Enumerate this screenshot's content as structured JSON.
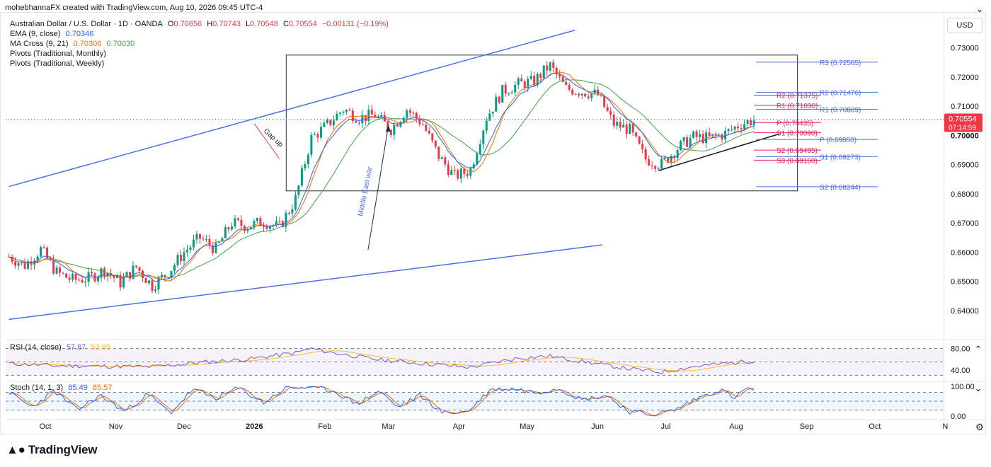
{
  "header": {
    "attribution": "mohebhannaFX created with TradingView.com, Aug 10, 2026 09:45 UTC-4"
  },
  "symbol": {
    "name": "Australian Dollar / U.S. Dollar · 1D · OANDA",
    "o_label": "O",
    "o": "0.70656",
    "h_label": "H",
    "h": "0.70743",
    "l_label": "L",
    "l": "0.70548",
    "c_label": "C",
    "c": "0.70554",
    "change": "−0.00131 (−0.19%)"
  },
  "indicators": {
    "ema_label": "EMA (9, close)",
    "ema_value": "0.70346",
    "ma_label": "MA Cross (9, 21)",
    "ma_fast": "0.70306",
    "ma_slow": "0.70030",
    "pivots_monthly": "Pivots (Traditional, Monthly)",
    "pivots_weekly": "Pivots (Traditional, Weekly)"
  },
  "currency_button": "USD",
  "last_price": {
    "value": "0.70554",
    "countdown": "07:14:59"
  },
  "annotations": {
    "gap": "Gap up",
    "war": "Middle East war"
  },
  "rsi": {
    "label": "RSI (14, close)",
    "value": "57.87",
    "ma": "53.89",
    "upper": "80.00",
    "lower": "40.00"
  },
  "stoch": {
    "label": "Stoch (14, 1, 3)",
    "k": "85.49",
    "d": "85.57",
    "upper": "100.00",
    "lower": "0.00"
  },
  "brand": "TradingView",
  "colors": {
    "up": "#089981",
    "down": "#f23645",
    "ema": "#2962ff",
    "ma_fast": "#ff6d00",
    "ma_slow": "#43a047",
    "channel": "#4c6fe3",
    "pivot_monthly": "#4c6fe3",
    "pivot_weekly": "#e91e63",
    "rsi": "#7e57c2",
    "rsi_ma": "#fbc02d"
  },
  "chart_data": {
    "type": "candlestick",
    "title": "Australian Dollar / U.S. Dollar · 1D · OANDA",
    "y_ticks": [
      "0.73000",
      "0.72000",
      "0.71000",
      "0.70000",
      "0.69000",
      "0.68000",
      "0.67000",
      "0.66000",
      "0.65000",
      "0.64000"
    ],
    "ylim": [
      0.6355,
      0.7335
    ],
    "x_ticks": [
      {
        "label": "Oct",
        "date": "2025-10-01"
      },
      {
        "label": "Nov",
        "date": "2025-11-01"
      },
      {
        "label": "Dec",
        "date": "2025-12-01"
      },
      {
        "label": "2026",
        "date": "2026-01-01",
        "bold": true
      },
      {
        "label": "Feb",
        "date": "2026-02-01"
      },
      {
        "label": "Mar",
        "date": "2026-03-01"
      },
      {
        "label": "Apr",
        "date": "2026-04-01"
      },
      {
        "label": "May",
        "date": "2026-05-01"
      },
      {
        "label": "Jun",
        "date": "2026-06-01"
      },
      {
        "label": "Jul",
        "date": "2026-07-01"
      },
      {
        "label": "Aug",
        "date": "2026-08-01"
      },
      {
        "label": "Sep",
        "date": "2026-09-01"
      },
      {
        "label": "Oct",
        "date": "2026-10-01"
      },
      {
        "label": "N",
        "date": "2026-11-01"
      }
    ],
    "close_path": [
      [
        "2025-09-15",
        0.6585
      ],
      [
        "2025-09-22",
        0.6555
      ],
      [
        "2025-09-29",
        0.661
      ],
      [
        "2025-10-06",
        0.653
      ],
      [
        "2025-10-13",
        0.6505
      ],
      [
        "2025-10-20",
        0.651
      ],
      [
        "2025-10-27",
        0.654
      ],
      [
        "2025-11-03",
        0.6495
      ],
      [
        "2025-11-10",
        0.655
      ],
      [
        "2025-11-17",
        0.6485
      ],
      [
        "2025-11-24",
        0.653
      ],
      [
        "2025-12-01",
        0.66
      ],
      [
        "2025-12-08",
        0.665
      ],
      [
        "2025-12-15",
        0.661
      ],
      [
        "2025-12-22",
        0.67
      ],
      [
        "2025-12-29",
        0.669
      ],
      [
        "2026-01-05",
        0.6705
      ],
      [
        "2026-01-12",
        0.6685
      ],
      [
        "2026-01-19",
        0.678
      ],
      [
        "2026-01-26",
        0.699
      ],
      [
        "2026-02-02",
        0.7035
      ],
      [
        "2026-02-09",
        0.709
      ],
      [
        "2026-02-16",
        0.706
      ],
      [
        "2026-02-23",
        0.707
      ],
      [
        "2026-03-02",
        0.702
      ],
      [
        "2026-03-09",
        0.709
      ],
      [
        "2026-03-16",
        0.704
      ],
      [
        "2026-03-23",
        0.693
      ],
      [
        "2026-03-30",
        0.686
      ],
      [
        "2026-04-06",
        0.688
      ],
      [
        "2026-04-13",
        0.706
      ],
      [
        "2026-04-20",
        0.715
      ],
      [
        "2026-04-27",
        0.7175
      ],
      [
        "2026-05-04",
        0.7185
      ],
      [
        "2026-05-11",
        0.724
      ],
      [
        "2026-05-18",
        0.716
      ],
      [
        "2026-05-25",
        0.715
      ],
      [
        "2026-06-01",
        0.714
      ],
      [
        "2026-06-08",
        0.704
      ],
      [
        "2026-06-15",
        0.702
      ],
      [
        "2026-06-22",
        0.692
      ],
      [
        "2026-06-29",
        0.69
      ],
      [
        "2026-07-06",
        0.6955
      ],
      [
        "2026-07-13",
        0.6995
      ],
      [
        "2026-07-20",
        0.699
      ],
      [
        "2026-07-27",
        0.7005
      ],
      [
        "2026-08-03",
        0.704
      ],
      [
        "2026-08-10",
        0.70554
      ]
    ],
    "series": [
      {
        "name": "EMA (9, close)",
        "last": 0.70346
      },
      {
        "name": "MA Cross fast (9)",
        "last": 0.70306
      },
      {
        "name": "MA Cross slow (21)",
        "last": 0.7003
      }
    ],
    "pivots_monthly": [
      {
        "label": "R3",
        "value": 0.72505
      },
      {
        "label": "R2",
        "value": 0.71476
      },
      {
        "label": "R1",
        "value": 0.70889
      },
      {
        "label": "P",
        "value": 0.6986
      },
      {
        "label": "S1",
        "value": 0.69273
      },
      {
        "label": "S2",
        "value": 0.68244
      }
    ],
    "pivots_weekly": [
      {
        "label": "R2",
        "value": 0.71375
      },
      {
        "label": "R1",
        "value": 0.7103
      },
      {
        "label": "P",
        "value": 0.70435
      },
      {
        "label": "S1",
        "value": 0.7009
      },
      {
        "label": "S2",
        "value": 0.69495
      },
      {
        "label": "S3",
        "value": 0.6915
      }
    ],
    "channel": {
      "upper": [
        [
          "2025-09-15",
          0.6825
        ],
        [
          "2026-05-22",
          0.736
        ]
      ],
      "lower": [
        [
          "2025-09-15",
          0.637
        ],
        [
          "2026-06-03",
          0.6625
        ]
      ]
    },
    "box": {
      "from": "2026-01-15",
      "to": "2026-08-28",
      "top": 0.7275,
      "bottom": 0.681
    },
    "trendline": [
      [
        "2026-06-28",
        0.688
      ],
      [
        "2026-08-20",
        0.7005
      ]
    ],
    "gap_arrow": [
      [
        "2026-01-01",
        0.704
      ],
      [
        "2026-01-12",
        0.692
      ]
    ],
    "war_arrow": [
      [
        "2026-02-20",
        0.6608
      ],
      [
        "2026-03-01",
        0.7035
      ]
    ],
    "rsi_range": [
      20,
      90
    ],
    "rsi_path": [
      [
        "2025-09-15",
        52
      ],
      [
        "2025-10-06",
        48
      ],
      [
        "2025-10-27",
        47
      ],
      [
        "2025-11-17",
        46
      ],
      [
        "2025-12-08",
        54
      ],
      [
        "2025-12-29",
        60
      ],
      [
        "2026-01-19",
        72
      ],
      [
        "2026-01-26",
        80
      ],
      [
        "2026-02-02",
        74
      ],
      [
        "2026-02-23",
        60
      ],
      [
        "2026-03-16",
        52
      ],
      [
        "2026-04-06",
        45
      ],
      [
        "2026-04-27",
        62
      ],
      [
        "2026-05-11",
        66
      ],
      [
        "2026-05-25",
        56
      ],
      [
        "2026-06-15",
        42
      ],
      [
        "2026-06-29",
        36
      ],
      [
        "2026-07-13",
        46
      ],
      [
        "2026-07-27",
        52
      ],
      [
        "2026-08-10",
        57.87
      ]
    ],
    "stoch_range": [
      -10,
      115
    ],
    "stoch_path": [
      [
        "2025-09-15",
        80
      ],
      [
        "2025-09-25",
        30
      ],
      [
        "2025-10-05",
        85
      ],
      [
        "2025-10-15",
        20
      ],
      [
        "2025-10-25",
        70
      ],
      [
        "2025-11-05",
        15
      ],
      [
        "2025-11-15",
        75
      ],
      [
        "2025-11-25",
        10
      ],
      [
        "2025-12-05",
        90
      ],
      [
        "2025-12-15",
        60
      ],
      [
        "2025-12-25",
        95
      ],
      [
        "2026-01-05",
        45
      ],
      [
        "2026-01-15",
        95
      ],
      [
        "2026-01-25",
        98
      ],
      [
        "2026-02-05",
        85
      ],
      [
        "2026-02-15",
        40
      ],
      [
        "2026-02-25",
        85
      ],
      [
        "2026-03-05",
        30
      ],
      [
        "2026-03-15",
        70
      ],
      [
        "2026-03-25",
        10
      ],
      [
        "2026-04-05",
        15
      ],
      [
        "2026-04-15",
        90
      ],
      [
        "2026-04-25",
        92
      ],
      [
        "2026-05-05",
        80
      ],
      [
        "2026-05-15",
        95
      ],
      [
        "2026-05-25",
        55
      ],
      [
        "2026-06-05",
        70
      ],
      [
        "2026-06-15",
        15
      ],
      [
        "2026-06-25",
        5
      ],
      [
        "2026-07-05",
        20
      ],
      [
        "2026-07-15",
        60
      ],
      [
        "2026-07-25",
        90
      ],
      [
        "2026-08-01",
        60
      ],
      [
        "2026-08-05",
        95
      ],
      [
        "2026-08-10",
        85.49
      ]
    ]
  }
}
